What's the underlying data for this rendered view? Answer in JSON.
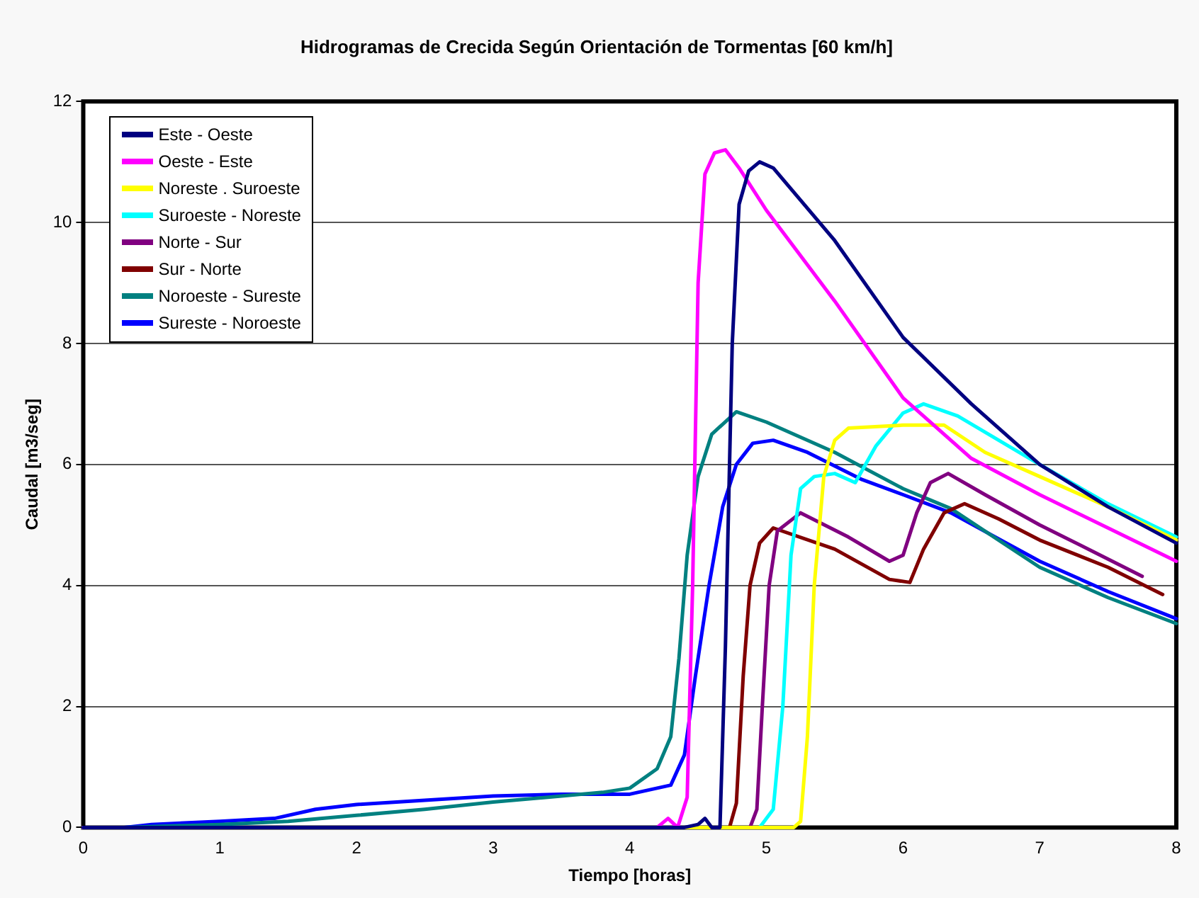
{
  "chart_data": {
    "type": "line",
    "title": "Hidrogramas de Crecida Según Orientación de Tormentas [60 km/h]",
    "xlabel": "Tiempo [horas]",
    "ylabel": "Caudal [m3/seg]",
    "xlim": [
      0,
      8
    ],
    "xticks": [
      0,
      1,
      2,
      3,
      4,
      5,
      6,
      7,
      8
    ],
    "ylim": [
      0,
      12
    ],
    "yticks": [
      0,
      2,
      4,
      6,
      8,
      10,
      12
    ],
    "grid": "y",
    "legend": "top left",
    "marker": "none",
    "line_style": "solid",
    "series": [
      {
        "name": "Este - Oeste",
        "color": "#000080",
        "x": [
          0,
          4.4,
          4.5,
          4.55,
          4.6,
          4.66,
          4.7,
          4.75,
          4.8,
          4.87,
          4.95,
          5.05,
          5.5,
          6,
          6.5,
          7,
          7.5,
          8
        ],
        "values": [
          0,
          0,
          0.05,
          0.15,
          0,
          0,
          3,
          8,
          10.3,
          10.85,
          11.0,
          10.9,
          9.7,
          8.1,
          7.0,
          6.0,
          5.3,
          4.7
        ]
      },
      {
        "name": "Oeste - Este",
        "color": "#ff00ff",
        "x": [
          0,
          4.2,
          4.28,
          4.35,
          4.42,
          4.46,
          4.5,
          4.55,
          4.62,
          4.7,
          4.8,
          5,
          5.5,
          6,
          6.5,
          7,
          7.5,
          8
        ],
        "values": [
          0,
          0,
          0.15,
          0,
          0.5,
          4,
          9,
          10.8,
          11.15,
          11.2,
          10.9,
          10.2,
          8.7,
          7.1,
          6.1,
          5.5,
          4.95,
          4.4
        ]
      },
      {
        "name": "Noreste . Suroeste",
        "color": "#ffff00",
        "x": [
          0,
          5.2,
          5.25,
          5.3,
          5.35,
          5.42,
          5.5,
          5.6,
          6.0,
          6.3,
          6.6,
          7,
          7.5,
          8
        ],
        "values": [
          0,
          0,
          0.1,
          1.5,
          4,
          5.8,
          6.4,
          6.6,
          6.65,
          6.65,
          6.2,
          5.8,
          5.3,
          4.75
        ]
      },
      {
        "name": "Suroeste - Noreste",
        "color": "#00ffff",
        "x": [
          0,
          4.95,
          5.05,
          5.12,
          5.18,
          5.25,
          5.35,
          5.5,
          5.65,
          5.8,
          6.0,
          6.15,
          6.4,
          7,
          7.5,
          8
        ],
        "values": [
          0,
          0,
          0.3,
          2,
          4.5,
          5.6,
          5.8,
          5.85,
          5.7,
          6.3,
          6.85,
          7.0,
          6.8,
          6.0,
          5.35,
          4.8
        ]
      },
      {
        "name": "Norte - Sur",
        "color": "#800080",
        "x": [
          0,
          4.88,
          4.93,
          4.97,
          5.02,
          5.08,
          5.25,
          5.6,
          5.9,
          6.0,
          6.1,
          6.2,
          6.33,
          6.6,
          7,
          7.4,
          7.75
        ],
        "values": [
          0,
          0,
          0.3,
          2,
          4,
          4.9,
          5.2,
          4.8,
          4.4,
          4.5,
          5.2,
          5.7,
          5.85,
          5.5,
          5.0,
          4.55,
          4.15
        ]
      },
      {
        "name": "Sur - Norte",
        "color": "#800000",
        "x": [
          0,
          4.73,
          4.78,
          4.83,
          4.88,
          4.95,
          5.05,
          5.5,
          5.9,
          6.05,
          6.15,
          6.3,
          6.45,
          6.7,
          7,
          7.5,
          7.9
        ],
        "values": [
          0,
          0,
          0.4,
          2.5,
          4.0,
          4.7,
          4.95,
          4.6,
          4.1,
          4.05,
          4.6,
          5.2,
          5.35,
          5.1,
          4.75,
          4.3,
          3.85
        ]
      },
      {
        "name": "Noroeste - Sureste",
        "color": "#008080",
        "x": [
          0,
          0.3,
          1,
          1.5,
          2,
          2.5,
          3,
          3.5,
          3.8,
          4.0,
          4.2,
          4.3,
          4.36,
          4.42,
          4.5,
          4.6,
          4.78,
          5,
          5.5,
          6,
          6.35,
          7,
          7.5,
          8
        ],
        "values": [
          0,
          0,
          0.05,
          0.1,
          0.2,
          0.3,
          0.42,
          0.52,
          0.58,
          0.65,
          0.97,
          1.5,
          2.8,
          4.5,
          5.8,
          6.5,
          6.87,
          6.7,
          6.2,
          5.6,
          5.27,
          4.3,
          3.8,
          3.37
        ]
      },
      {
        "name": "Sureste - Noroeste",
        "color": "#0000ff",
        "x": [
          0,
          0.3,
          0.5,
          1,
          1.4,
          1.7,
          2,
          2.5,
          3,
          3.5,
          4.0,
          4.3,
          4.4,
          4.48,
          4.58,
          4.68,
          4.78,
          4.9,
          5.05,
          5.3,
          5.7,
          6,
          6.35,
          7,
          7.5,
          8
        ],
        "values": [
          0,
          0,
          0.05,
          0.1,
          0.15,
          0.3,
          0.38,
          0.45,
          0.52,
          0.55,
          0.55,
          0.7,
          1.2,
          2.5,
          4.0,
          5.3,
          6.0,
          6.35,
          6.4,
          6.2,
          5.75,
          5.5,
          5.2,
          4.4,
          3.9,
          3.45
        ]
      }
    ]
  }
}
